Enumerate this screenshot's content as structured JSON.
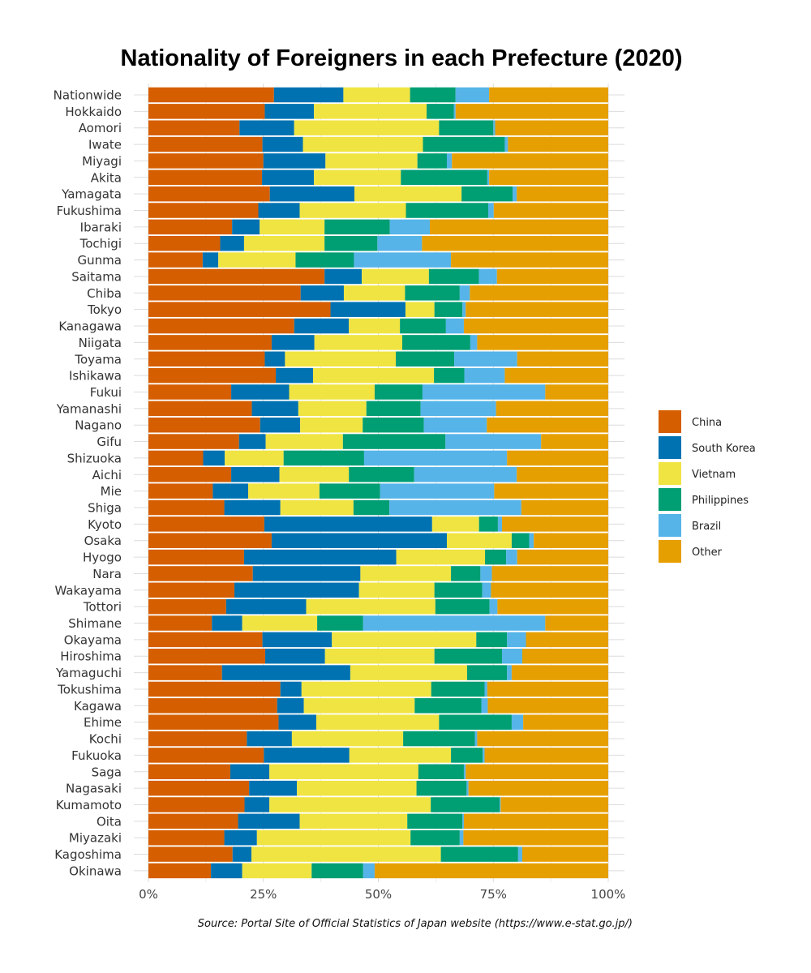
{
  "chart_data": {
    "type": "bar",
    "orientation": "horizontal",
    "stacked": "percent",
    "title": "Nationality of Foreigners in each Prefecture (2020)",
    "caption": "Source: Portal Site of Official Statistics of Japan website (https://www.e-stat.go.jp/)",
    "xlabel": "",
    "ylabel": "",
    "xlim": [
      0,
      100
    ],
    "xticks": [
      "0%",
      "25%",
      "50%",
      "75%",
      "100%"
    ],
    "grid": true,
    "legend_position": "right",
    "categories": [
      "Nationwide",
      "Hokkaido",
      "Aomori",
      "Iwate",
      "Miyagi",
      "Akita",
      "Yamagata",
      "Fukushima",
      "Ibaraki",
      "Tochigi",
      "Gunma",
      "Saitama",
      "Chiba",
      "Tokyo",
      "Kanagawa",
      "Niigata",
      "Toyama",
      "Ishikawa",
      "Fukui",
      "Yamanashi",
      "Nagano",
      "Gifu",
      "Shizuoka",
      "Aichi",
      "Mie",
      "Shiga",
      "Kyoto",
      "Osaka",
      "Hyogo",
      "Nara",
      "Wakayama",
      "Tottori",
      "Shimane",
      "Okayama",
      "Hiroshima",
      "Yamaguchi",
      "Tokushima",
      "Kagawa",
      "Ehime",
      "Kochi",
      "Fukuoka",
      "Saga",
      "Nagasaki",
      "Kumamoto",
      "Oita",
      "Miyazaki",
      "Kagoshima",
      "Okinawa"
    ],
    "series": [
      {
        "name": "China",
        "color": "#D55E00",
        "values": [
          27.3,
          25.3,
          19.8,
          24.8,
          25.0,
          24.7,
          26.4,
          23.9,
          18.2,
          15.6,
          11.8,
          38.3,
          33.1,
          39.6,
          31.7,
          26.8,
          25.3,
          27.7,
          18.0,
          22.5,
          24.3,
          19.7,
          11.9,
          18.0,
          14.0,
          16.5,
          25.2,
          26.8,
          20.8,
          22.7,
          18.7,
          16.9,
          13.8,
          24.8,
          25.4,
          16.0,
          28.7,
          28.0,
          28.3,
          21.4,
          25.1,
          17.8,
          21.9,
          20.9,
          19.5,
          16.5,
          18.3,
          13.6
        ]
      },
      {
        "name": "South Korea",
        "color": "#0072B2",
        "values": [
          15.1,
          10.7,
          11.9,
          8.8,
          13.5,
          11.3,
          18.4,
          9.0,
          6.0,
          5.2,
          3.4,
          8.1,
          9.4,
          16.3,
          11.9,
          9.3,
          4.4,
          8.1,
          12.6,
          10.1,
          8.7,
          5.8,
          4.7,
          10.5,
          7.7,
          12.2,
          36.5,
          38.1,
          33.1,
          23.4,
          27.1,
          17.4,
          6.6,
          15.1,
          13.0,
          27.9,
          4.6,
          5.8,
          8.2,
          9.8,
          18.6,
          8.5,
          10.4,
          5.4,
          13.4,
          7.1,
          4.1,
          6.8
        ]
      },
      {
        "name": "Vietnam",
        "color": "#F0E442",
        "values": [
          14.5,
          24.5,
          31.5,
          26.1,
          20.0,
          18.9,
          23.3,
          23.1,
          14.1,
          17.5,
          16.8,
          14.6,
          13.3,
          6.3,
          11.1,
          19.1,
          24.1,
          26.3,
          18.6,
          14.8,
          13.6,
          16.8,
          12.8,
          15.1,
          15.5,
          15.9,
          10.2,
          14.1,
          19.3,
          19.7,
          16.4,
          28.1,
          16.3,
          31.4,
          23.8,
          25.4,
          28.2,
          24.1,
          26.7,
          24.2,
          22.1,
          32.4,
          26.0,
          35.1,
          23.4,
          33.4,
          41.2,
          15.1
        ]
      },
      {
        "name": "Philippines",
        "color": "#009E73",
        "values": [
          9.9,
          5.9,
          11.8,
          17.8,
          6.4,
          18.8,
          11.1,
          17.9,
          14.2,
          11.5,
          12.7,
          10.9,
          11.9,
          6.1,
          10.0,
          14.8,
          12.7,
          6.6,
          10.4,
          11.8,
          13.3,
          22.3,
          17.5,
          14.2,
          13.2,
          7.8,
          4.1,
          3.8,
          4.6,
          6.4,
          10.4,
          11.8,
          10.0,
          6.7,
          14.7,
          8.7,
          11.6,
          14.5,
          15.8,
          15.6,
          6.9,
          9.9,
          10.9,
          15.0,
          12.0,
          10.7,
          16.8,
          11.2
        ]
      },
      {
        "name": "Brazil",
        "color": "#56B4E9",
        "values": [
          7.3,
          0.4,
          0.4,
          0.7,
          1.1,
          0.4,
          0.9,
          1.2,
          8.7,
          9.7,
          21.1,
          3.9,
          2.2,
          0.7,
          3.9,
          1.5,
          13.7,
          8.8,
          26.7,
          16.4,
          13.7,
          20.8,
          31.1,
          22.3,
          24.8,
          28.7,
          0.9,
          1.0,
          2.4,
          2.5,
          1.9,
          1.7,
          39.6,
          4.1,
          4.4,
          1.0,
          0.6,
          1.4,
          2.5,
          0.5,
          0.4,
          0.4,
          0.4,
          0.2,
          0.3,
          0.8,
          0.9,
          2.5
        ]
      },
      {
        "name": "Other",
        "color": "#E69F00",
        "values": [
          25.9,
          33.2,
          24.6,
          21.8,
          34.0,
          25.9,
          19.9,
          24.9,
          38.8,
          40.5,
          34.2,
          24.2,
          30.1,
          31.0,
          31.4,
          28.5,
          19.8,
          22.5,
          13.7,
          24.4,
          26.4,
          14.6,
          22.0,
          19.9,
          24.8,
          18.9,
          23.1,
          16.2,
          19.8,
          25.3,
          25.5,
          24.1,
          13.7,
          17.9,
          18.7,
          21.0,
          26.3,
          26.2,
          18.5,
          28.5,
          26.9,
          31.0,
          30.4,
          23.4,
          31.4,
          31.5,
          18.7,
          50.8
        ]
      }
    ]
  }
}
